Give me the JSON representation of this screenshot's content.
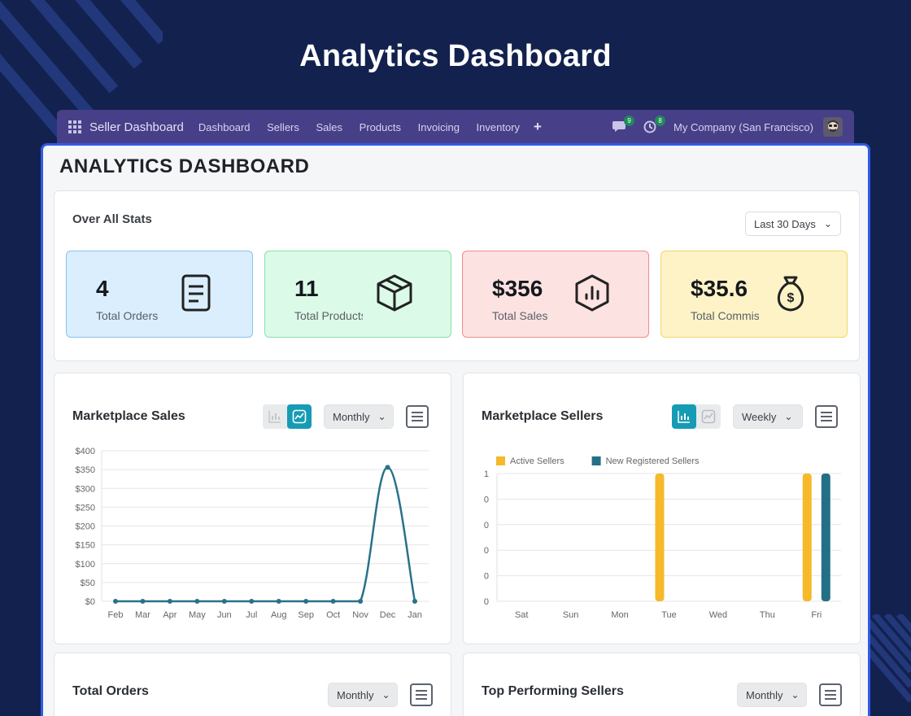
{
  "hero": {
    "title": "Analytics Dashboard"
  },
  "topbar": {
    "brand": "Seller Dashboard",
    "nav": [
      "Dashboard",
      "Sellers",
      "Sales",
      "Products",
      "Invoicing",
      "Inventory"
    ],
    "messages_badge": "9",
    "activity_badge": "8",
    "company": "My Company (San Francisco)"
  },
  "page": {
    "title": "ANALYTICS DASHBOARD"
  },
  "stats": {
    "heading": "Over All Stats",
    "range": "Last 30 Days",
    "cards": [
      {
        "value": "4",
        "label": "Total Orders",
        "icon": "document-icon",
        "bg": "#dbeefd",
        "border": "#86c3ef"
      },
      {
        "value": "11",
        "label": "Total Products",
        "icon": "box-icon",
        "bg": "#dcfae8",
        "border": "#86e2aa"
      },
      {
        "value": "$356",
        "label": "Total Sales",
        "icon": "chart-hexagon-icon",
        "bg": "#fde2e2",
        "border": "#f08c8c"
      },
      {
        "value": "$35.6",
        "label": "Total Commission",
        "icon": "money-bag-icon",
        "bg": "#fdf3c7",
        "border": "#f2d66b"
      }
    ]
  },
  "sales_card": {
    "title": "Marketplace Sales",
    "period": "Monthly"
  },
  "sellers_card": {
    "title": "Marketplace Sellers",
    "period": "Weekly"
  },
  "orders_card": {
    "title": "Total Orders",
    "period": "Monthly"
  },
  "top_sellers_card": {
    "title": "Top Performing Sellers",
    "period": "Monthly"
  },
  "chart_data": [
    {
      "type": "line",
      "x": [
        "Feb",
        "Mar",
        "Apr",
        "May",
        "Jun",
        "Jul",
        "Aug",
        "Sep",
        "Oct",
        "Nov",
        "Dec",
        "Jan"
      ],
      "series": [
        {
          "values": [
            0,
            0,
            0,
            0,
            0,
            0,
            0,
            0,
            0,
            0,
            356,
            0
          ]
        }
      ],
      "yticks": [
        "$0",
        "$50",
        "$100",
        "$150",
        "$200",
        "$250",
        "$300",
        "$350",
        "$400"
      ],
      "ylim": [
        0,
        400
      ],
      "color": "#2a7189"
    },
    {
      "type": "bar",
      "categories": [
        "Sat",
        "Sun",
        "Mon",
        "Tue",
        "Wed",
        "Thu",
        "Fri"
      ],
      "series": [
        {
          "name": "Active Sellers",
          "values": [
            0,
            0,
            0,
            1,
            0,
            0,
            1
          ],
          "color": "#f6b92a"
        },
        {
          "name": "New Registered Sellers",
          "values": [
            0,
            0,
            0,
            0,
            0,
            0,
            1
          ],
          "color": "#236f86"
        }
      ],
      "yticks": [
        "0",
        "0",
        "0",
        "0",
        "0",
        "1"
      ],
      "ylim": [
        0,
        1
      ]
    }
  ]
}
